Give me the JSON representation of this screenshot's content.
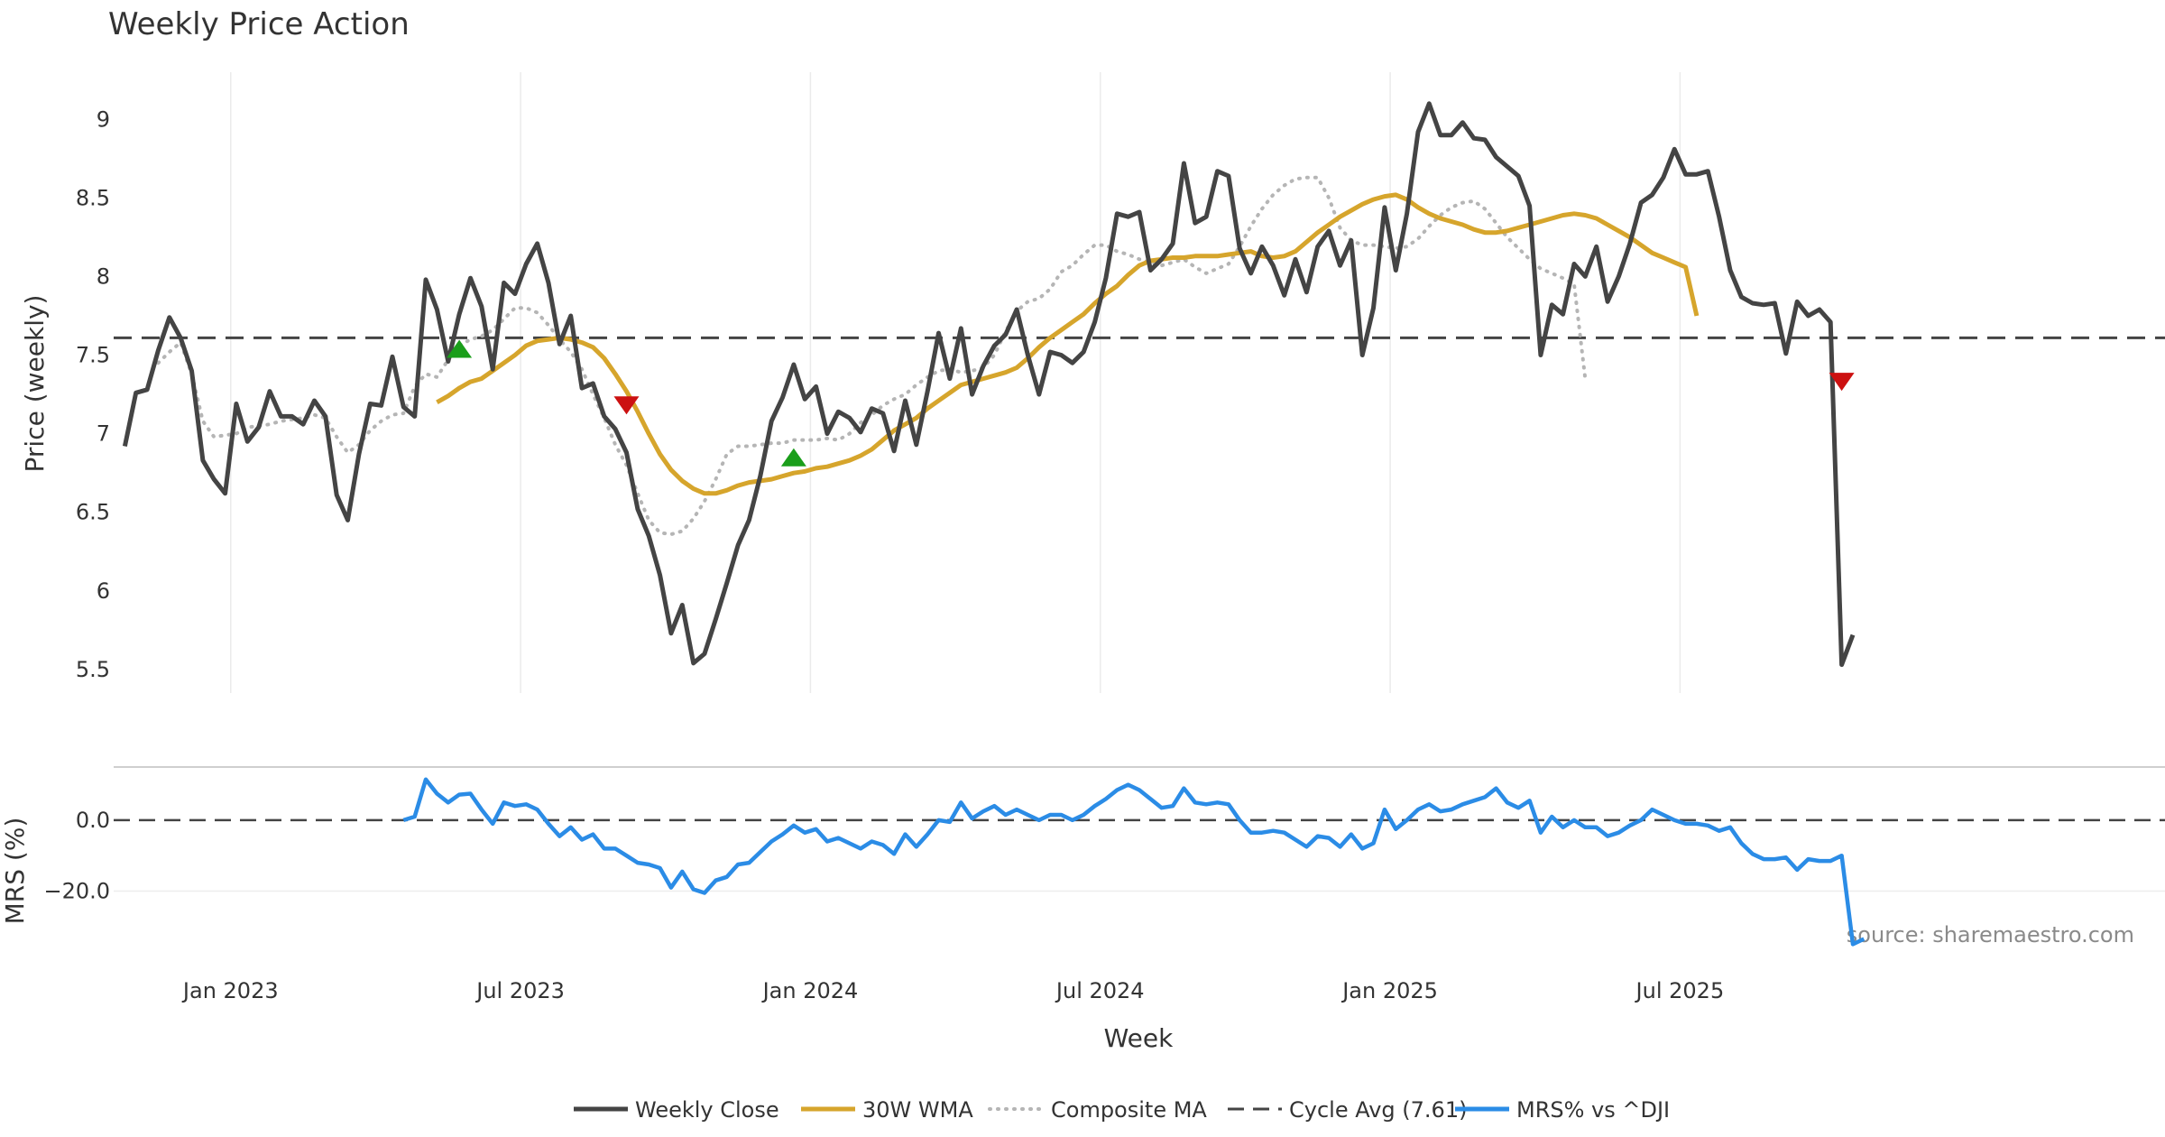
{
  "chart_data": {
    "type": "line",
    "title": "Weekly Price Action",
    "xlabel": "Week",
    "price_panel": {
      "ylabel": "Price (weekly)",
      "ylim": [
        5.35,
        9.3
      ],
      "yticks": [
        5.5,
        6,
        6.5,
        7,
        7.5,
        8,
        8.5,
        9
      ],
      "ytick_labels": [
        "5.5",
        "6",
        "6.5",
        "7",
        "7.5",
        "8",
        "8.5",
        "9"
      ],
      "xlim": [
        0,
        184
      ],
      "xticks": [
        {
          "x": 10.5,
          "label": "Jan 2023"
        },
        {
          "x": 36.5,
          "label": "Jul 2023"
        },
        {
          "x": 62.5,
          "label": "Jan 2024"
        },
        {
          "x": 88.5,
          "label": "Jul 2024"
        },
        {
          "x": 114.5,
          "label": "Jan 2025"
        },
        {
          "x": 140.5,
          "label": "Jul 2025"
        }
      ],
      "cycle_avg": 7.61,
      "series": [
        {
          "name": "Weekly Close",
          "color": "#444444",
          "style": "solid",
          "x0": 1,
          "values": [
            6.92,
            7.26,
            7.28,
            7.53,
            7.74,
            7.61,
            7.4,
            6.83,
            6.71,
            6.62,
            7.19,
            6.95,
            7.04,
            7.27,
            7.11,
            7.11,
            7.06,
            7.21,
            7.11,
            6.61,
            6.45,
            6.87,
            7.19,
            7.18,
            7.49,
            7.17,
            7.11,
            7.98,
            7.79,
            7.46,
            7.76,
            7.99,
            7.81,
            7.41,
            7.96,
            7.89,
            8.08,
            8.21,
            7.96,
            7.57,
            7.75,
            7.29,
            7.32,
            7.11,
            7.03,
            6.88,
            6.52,
            6.35,
            6.1,
            5.73,
            5.91,
            5.54,
            5.6,
            5.82,
            6.05,
            6.29,
            6.45,
            6.73,
            7.08,
            7.23,
            7.44,
            7.22,
            7.3,
            7.0,
            7.14,
            7.1,
            7.01,
            7.16,
            7.13,
            6.89,
            7.21,
            6.93,
            7.27,
            7.64,
            7.35,
            7.67,
            7.25,
            7.43,
            7.56,
            7.63,
            7.79,
            7.5,
            7.25,
            7.52,
            7.5,
            7.45,
            7.52,
            7.71,
            7.99,
            8.4,
            8.38,
            8.41,
            8.04,
            8.11,
            8.21,
            8.72,
            8.34,
            8.38,
            8.67,
            8.64,
            8.18,
            8.02,
            8.19,
            8.07,
            7.88,
            8.11,
            7.9,
            8.19,
            8.29,
            8.07,
            8.23,
            7.5,
            7.8,
            8.44,
            8.04,
            8.4,
            8.92,
            9.1,
            8.9,
            8.9,
            8.98,
            8.88,
            8.87,
            8.76,
            8.7,
            8.64,
            8.45,
            7.5,
            7.82,
            7.76,
            8.08,
            8.0,
            8.19,
            7.84,
            8.0,
            8.21,
            8.47,
            8.52,
            8.63,
            8.81,
            8.65,
            8.65,
            8.67,
            8.38,
            8.04,
            7.87,
            7.83,
            7.82,
            7.83,
            7.51,
            7.84,
            7.75,
            7.79,
            7.71,
            5.53,
            5.72
          ]
        },
        {
          "name": "30W WMA",
          "color": "#d6a52c",
          "style": "solid",
          "x0": 29,
          "values": [
            7.2,
            7.24,
            7.29,
            7.33,
            7.35,
            7.4,
            7.45,
            7.5,
            7.56,
            7.59,
            7.6,
            7.61,
            7.6,
            7.58,
            7.55,
            7.48,
            7.38,
            7.27,
            7.14,
            7.0,
            6.87,
            6.77,
            6.7,
            6.65,
            6.62,
            6.62,
            6.64,
            6.67,
            6.69,
            6.7,
            6.71,
            6.73,
            6.75,
            6.76,
            6.78,
            6.79,
            6.81,
            6.83,
            6.86,
            6.9,
            6.96,
            7.02,
            7.06,
            7.1,
            7.16,
            7.21,
            7.26,
            7.31,
            7.33,
            7.35,
            7.37,
            7.39,
            7.42,
            7.48,
            7.55,
            7.61,
            7.66,
            7.71,
            7.76,
            7.83,
            7.89,
            7.94,
            8.01,
            8.07,
            8.1,
            8.11,
            8.12,
            8.12,
            8.13,
            8.13,
            8.13,
            8.14,
            8.15,
            8.16,
            8.13,
            8.12,
            8.13,
            8.16,
            8.22,
            8.28,
            8.33,
            8.38,
            8.42,
            8.46,
            8.49,
            8.51,
            8.52,
            8.49,
            8.44,
            8.4,
            8.37,
            8.35,
            8.33,
            8.3,
            8.28,
            8.28,
            8.29,
            8.31,
            8.33,
            8.35,
            8.37,
            8.39,
            8.4,
            8.39,
            8.37,
            8.33,
            8.29,
            8.25,
            8.2,
            8.15,
            8.12,
            8.09,
            8.06,
            7.75
          ]
        },
        {
          "name": "Composite MA",
          "color": "#b5b5b5",
          "style": "dotted",
          "x0": 4,
          "values": [
            7.45,
            7.52,
            7.58,
            7.38,
            7.08,
            6.98,
            6.99,
            7.0,
            7.04,
            7.05,
            7.06,
            7.08,
            7.09,
            7.1,
            7.12,
            7.1,
            6.98,
            6.88,
            6.93,
            7.02,
            7.08,
            7.12,
            7.13,
            7.3,
            7.38,
            7.36,
            7.47,
            7.56,
            7.6,
            7.62,
            7.66,
            7.73,
            7.8,
            7.8,
            7.77,
            7.69,
            7.6,
            7.52,
            7.41,
            7.25,
            7.1,
            6.93,
            6.8,
            6.62,
            6.45,
            6.37,
            6.36,
            6.38,
            6.46,
            6.57,
            6.71,
            6.87,
            6.92,
            6.92,
            6.93,
            6.94,
            6.94,
            6.96,
            6.96,
            6.96,
            6.97,
            6.96,
            7.0,
            7.07,
            7.12,
            7.18,
            7.22,
            7.25,
            7.31,
            7.36,
            7.4,
            7.41,
            7.39,
            7.4,
            7.42,
            7.5,
            7.65,
            7.78,
            7.84,
            7.86,
            7.92,
            8.03,
            8.07,
            8.14,
            8.2,
            8.2,
            8.16,
            8.14,
            8.11,
            8.09,
            8.07,
            8.09,
            8.11,
            8.06,
            8.02,
            8.05,
            8.08,
            8.19,
            8.32,
            8.43,
            8.52,
            8.58,
            8.62,
            8.63,
            8.63,
            8.5,
            8.31,
            8.23,
            8.2,
            8.2,
            8.19,
            8.18,
            8.19,
            8.24,
            8.32,
            8.39,
            8.44,
            8.47,
            8.48,
            8.43,
            8.34,
            8.25,
            8.18,
            8.11,
            8.05,
            8.02,
            7.99,
            7.95,
            7.35
          ]
        }
      ],
      "markers": [
        {
          "type": "buy",
          "symbol": "triangle-up",
          "color": "#1a9e1a",
          "x": 31,
          "y": 7.54
        },
        {
          "type": "sell",
          "symbol": "triangle-down",
          "color": "#cc1111",
          "x": 46,
          "y": 7.18
        },
        {
          "type": "buy",
          "symbol": "triangle-up",
          "color": "#1a9e1a",
          "x": 61,
          "y": 6.85
        },
        {
          "type": "sell",
          "symbol": "triangle-down",
          "color": "#cc1111",
          "x": 155,
          "y": 7.33
        }
      ]
    },
    "mrs_panel": {
      "ylabel": "MRS (%)",
      "ylim": [
        -41,
        15
      ],
      "yticks": [
        0,
        -20
      ],
      "ytick_labels": [
        "0.0",
        "−20.0"
      ],
      "zero_line": 0,
      "series": [
        {
          "name": "MRS% vs ^DJI",
          "color": "#2b8ce6",
          "x0": 26,
          "values": [
            0.0,
            1.0,
            11.5,
            7.5,
            5.0,
            7.2,
            7.5,
            3.0,
            -1.0,
            5.0,
            4.0,
            4.5,
            3.0,
            -1.0,
            -4.5,
            -2.0,
            -5.5,
            -4.0,
            -8.0,
            -8.0,
            -10.0,
            -12.0,
            -12.5,
            -13.5,
            -19.0,
            -14.5,
            -19.5,
            -20.5,
            -17.0,
            -16.0,
            -12.5,
            -12.0,
            -9.0,
            -6.0,
            -4.0,
            -1.5,
            -3.5,
            -2.5,
            -6.0,
            -5.0,
            -6.5,
            -8.0,
            -6.0,
            -7.0,
            -9.5,
            -4.0,
            -7.5,
            -4.0,
            0.0,
            -0.5,
            5.0,
            0.5,
            2.5,
            4.0,
            1.5,
            3.0,
            1.5,
            0.0,
            1.5,
            1.5,
            0.0,
            1.5,
            4.0,
            6.0,
            8.5,
            10.0,
            8.5,
            6.0,
            3.5,
            4.0,
            9.0,
            5.0,
            4.5,
            5.0,
            4.5,
            0.0,
            -3.5,
            -3.5,
            -3.0,
            -3.5,
            -5.5,
            -7.5,
            -4.5,
            -5.0,
            -7.5,
            -4.0,
            -8.0,
            -6.5,
            3.0,
            -2.5,
            0.0,
            3.0,
            4.5,
            2.5,
            3.0,
            4.5,
            5.5,
            6.5,
            9.0,
            5.0,
            3.5,
            5.5,
            -3.5,
            1.0,
            -2.0,
            0.0,
            -2.0,
            -2.0,
            -4.5,
            -3.5,
            -1.5,
            0.0,
            3.0,
            1.5,
            0.0,
            -1.0,
            -1.0,
            -1.5,
            -3.0,
            -2.0,
            -6.5,
            -9.5,
            -11.0,
            -11.0,
            -10.5,
            -14.0,
            -11.0,
            -11.5,
            -11.5,
            -10.0,
            -35.0,
            -33.5
          ]
        }
      ]
    },
    "legend": {
      "position": "bottom-center",
      "entries": [
        {
          "label": "Weekly Close",
          "color": "#444444",
          "style": "solid"
        },
        {
          "label": "30W WMA",
          "color": "#d6a52c",
          "style": "solid"
        },
        {
          "label": "Composite MA",
          "color": "#b5b5b5",
          "style": "dotted"
        },
        {
          "label": "Cycle Avg (7.61)",
          "color": "#444444",
          "style": "dashed"
        },
        {
          "label": "MRS% vs ^DJI",
          "color": "#2b8ce6",
          "style": "solid"
        }
      ]
    },
    "source_text": "source: sharemaestro.com"
  }
}
